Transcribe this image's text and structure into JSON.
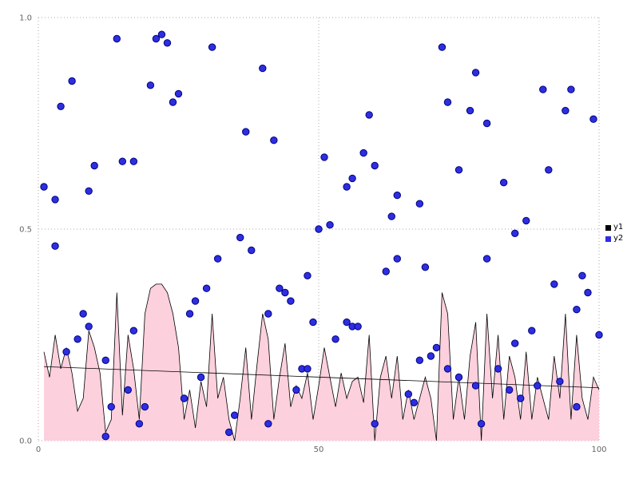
{
  "chart_data": {
    "type": "mixed",
    "title": "",
    "xlabel": "",
    "ylabel": "",
    "xlim": [
      0,
      100
    ],
    "ylim": [
      0,
      1
    ],
    "xticks": [
      0,
      50,
      100
    ],
    "xtick_labels": [
      "0",
      "50",
      "100"
    ],
    "yticks": [
      0,
      0.5,
      1
    ],
    "ytick_labels": [
      "0.0",
      "0.5",
      "1.0"
    ],
    "grid": "dotted",
    "colors": {
      "area_fill": "#fcd0dc",
      "area_line": "#000000",
      "scatter_fill": "#2e2ee0",
      "scatter_stroke": "#000080",
      "grid_line": "#aaaaaa",
      "tick_label": "#666666",
      "background": "#ffffff"
    },
    "legend": {
      "position": "right",
      "items": [
        {
          "label": "y1",
          "color": "#000000"
        },
        {
          "label": "y2",
          "color": "#2e2ee0"
        }
      ]
    },
    "trend": {
      "name": "y1-trend",
      "start": [
        1,
        0.175
      ],
      "end": [
        100,
        0.125
      ],
      "color": "#000000"
    },
    "series": [
      {
        "name": "y1",
        "type": "area",
        "x_start": 1,
        "values": [
          0.21,
          0.15,
          0.25,
          0.17,
          0.22,
          0.16,
          0.07,
          0.1,
          0.26,
          0.22,
          0.16,
          0.02,
          0.05,
          0.35,
          0.06,
          0.25,
          0.17,
          0.05,
          0.3,
          0.36,
          0.37,
          0.37,
          0.35,
          0.3,
          0.22,
          0.05,
          0.12,
          0.03,
          0.14,
          0.08,
          0.3,
          0.1,
          0.15,
          0.05,
          0.0,
          0.1,
          0.22,
          0.05,
          0.18,
          0.3,
          0.24,
          0.05,
          0.15,
          0.23,
          0.08,
          0.13,
          0.1,
          0.16,
          0.05,
          0.13,
          0.22,
          0.15,
          0.08,
          0.16,
          0.1,
          0.14,
          0.15,
          0.09,
          0.25,
          0.0,
          0.15,
          0.2,
          0.1,
          0.2,
          0.05,
          0.12,
          0.05,
          0.1,
          0.15,
          0.1,
          0.0,
          0.35,
          0.3,
          0.05,
          0.15,
          0.05,
          0.2,
          0.28,
          0.0,
          0.3,
          0.1,
          0.25,
          0.05,
          0.2,
          0.15,
          0.05,
          0.21,
          0.05,
          0.15,
          0.1,
          0.05,
          0.2,
          0.1,
          0.3,
          0.05,
          0.25,
          0.1,
          0.05,
          0.15,
          0.12
        ]
      },
      {
        "name": "y2",
        "type": "scatter",
        "points": [
          [
            1,
            0.6
          ],
          [
            3,
            0.57
          ],
          [
            3,
            0.46
          ],
          [
            4,
            0.79
          ],
          [
            5,
            0.21
          ],
          [
            6,
            0.85
          ],
          [
            7,
            0.24
          ],
          [
            8,
            0.3
          ],
          [
            9,
            0.59
          ],
          [
            9,
            0.27
          ],
          [
            10,
            0.65
          ],
          [
            12,
            0.19
          ],
          [
            12,
            0.01
          ],
          [
            13,
            0.08
          ],
          [
            14,
            0.95
          ],
          [
            15,
            0.66
          ],
          [
            16,
            0.12
          ],
          [
            17,
            0.66
          ],
          [
            17,
            0.26
          ],
          [
            18,
            0.04
          ],
          [
            19,
            0.08
          ],
          [
            20,
            0.84
          ],
          [
            21,
            0.95
          ],
          [
            22,
            0.96
          ],
          [
            23,
            0.94
          ],
          [
            24,
            0.8
          ],
          [
            25,
            0.82
          ],
          [
            26,
            0.1
          ],
          [
            27,
            0.3
          ],
          [
            28,
            0.33
          ],
          [
            29,
            0.15
          ],
          [
            30,
            0.36
          ],
          [
            31,
            0.93
          ],
          [
            32,
            0.43
          ],
          [
            34,
            0.02
          ],
          [
            35,
            0.06
          ],
          [
            36,
            0.48
          ],
          [
            37,
            0.73
          ],
          [
            38,
            0.45
          ],
          [
            40,
            0.88
          ],
          [
            41,
            0.3
          ],
          [
            41,
            0.04
          ],
          [
            42,
            0.71
          ],
          [
            43,
            0.36
          ],
          [
            44,
            0.35
          ],
          [
            45,
            0.33
          ],
          [
            46,
            0.12
          ],
          [
            47,
            0.17
          ],
          [
            48,
            0.17
          ],
          [
            48,
            0.39
          ],
          [
            49,
            0.28
          ],
          [
            50,
            0.5
          ],
          [
            51,
            0.67
          ],
          [
            52,
            0.51
          ],
          [
            53,
            0.24
          ],
          [
            55,
            0.6
          ],
          [
            55,
            0.28
          ],
          [
            56,
            0.62
          ],
          [
            56,
            0.27
          ],
          [
            57,
            0.27
          ],
          [
            58,
            0.68
          ],
          [
            59,
            0.77
          ],
          [
            60,
            0.65
          ],
          [
            60,
            0.04
          ],
          [
            62,
            0.4
          ],
          [
            63,
            0.53
          ],
          [
            64,
            0.58
          ],
          [
            64,
            0.43
          ],
          [
            66,
            0.11
          ],
          [
            67,
            0.09
          ],
          [
            68,
            0.56
          ],
          [
            68,
            0.19
          ],
          [
            69,
            0.41
          ],
          [
            70,
            0.2
          ],
          [
            71,
            0.22
          ],
          [
            72,
            0.93
          ],
          [
            73,
            0.8
          ],
          [
            73,
            0.17
          ],
          [
            75,
            0.64
          ],
          [
            75,
            0.15
          ],
          [
            77,
            0.78
          ],
          [
            78,
            0.87
          ],
          [
            78,
            0.13
          ],
          [
            79,
            0.04
          ],
          [
            80,
            0.75
          ],
          [
            80,
            0.43
          ],
          [
            82,
            0.17
          ],
          [
            83,
            0.61
          ],
          [
            84,
            0.12
          ],
          [
            85,
            0.49
          ],
          [
            85,
            0.23
          ],
          [
            86,
            0.1
          ],
          [
            87,
            0.52
          ],
          [
            88,
            0.26
          ],
          [
            89,
            0.13
          ],
          [
            90,
            0.83
          ],
          [
            91,
            0.64
          ],
          [
            92,
            0.37
          ],
          [
            93,
            0.14
          ],
          [
            94,
            0.78
          ],
          [
            95,
            0.83
          ],
          [
            96,
            0.31
          ],
          [
            96,
            0.08
          ],
          [
            97,
            0.39
          ],
          [
            98,
            0.35
          ],
          [
            99,
            0.76
          ],
          [
            100,
            0.25
          ]
        ]
      }
    ]
  }
}
